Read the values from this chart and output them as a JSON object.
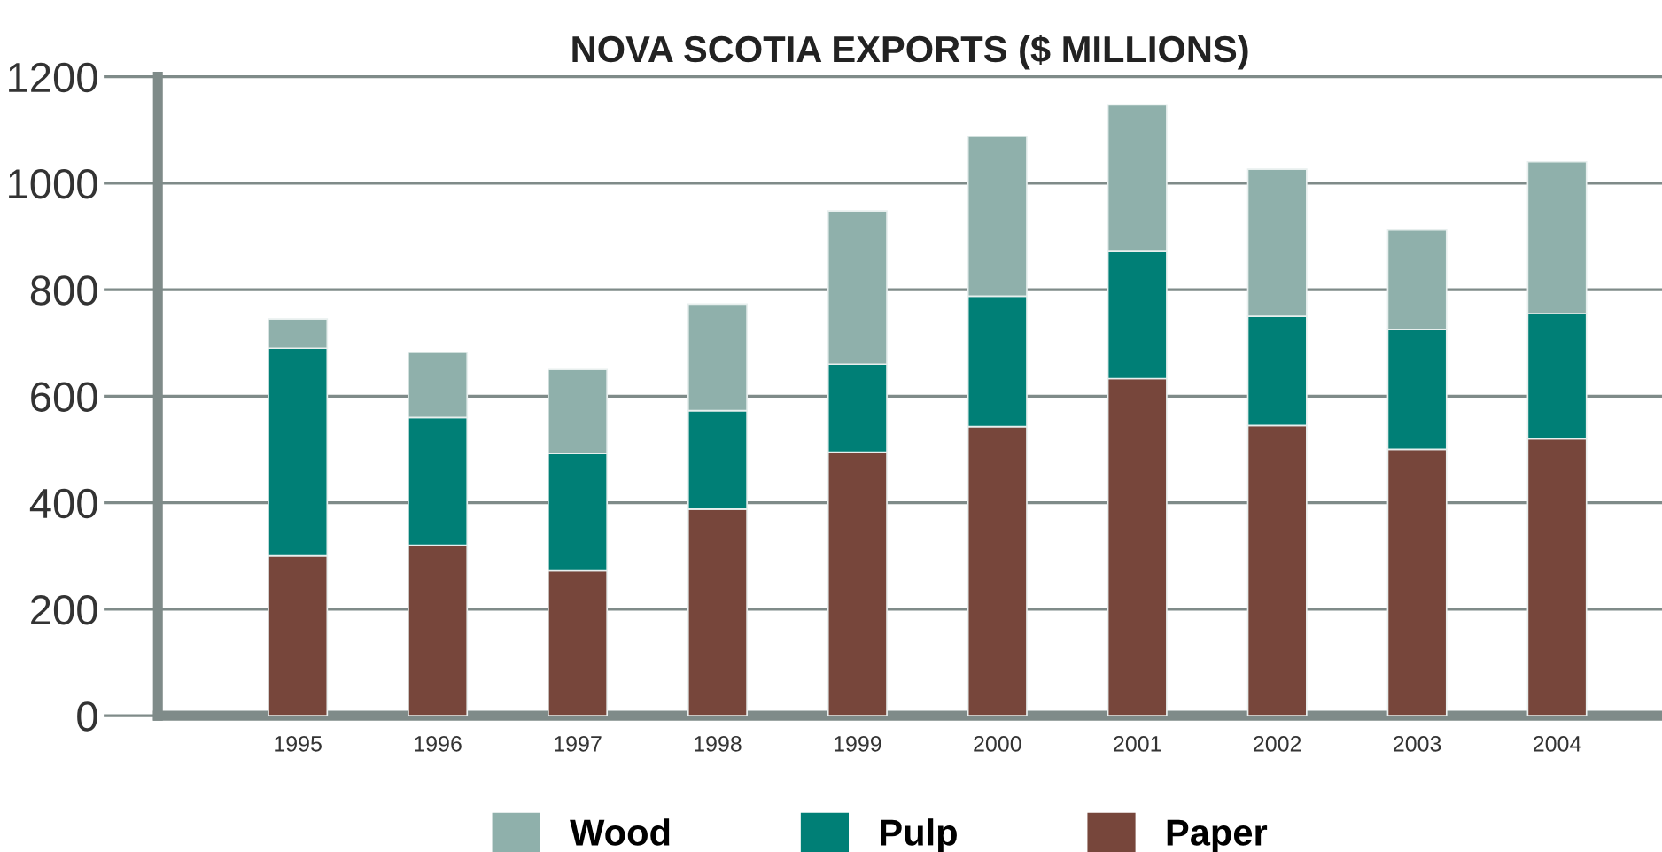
{
  "chart_data": {
    "type": "bar",
    "title": "NOVA SCOTIA EXPORTS ($ MILLIONS)",
    "stacked": true,
    "categories": [
      "1995",
      "1996",
      "1997",
      "1998",
      "1999",
      "2000",
      "2001",
      "2002",
      "2003",
      "2004"
    ],
    "series": [
      {
        "name": "Paper",
        "color": "#77463b",
        "values": [
          300,
          320,
          272,
          388,
          495,
          543,
          633,
          545,
          500,
          520
        ]
      },
      {
        "name": "Pulp",
        "color": "#007f76",
        "values": [
          390,
          240,
          220,
          185,
          165,
          245,
          240,
          205,
          225,
          235
        ]
      },
      {
        "name": "Wood",
        "color": "#8fb0ab",
        "values": [
          55,
          122,
          158,
          200,
          288,
          300,
          274,
          276,
          187,
          285
        ]
      }
    ],
    "ylim": [
      0,
      1200
    ],
    "yticks": [
      0,
      200,
      400,
      600,
      800,
      1000,
      1200
    ],
    "grid": "y",
    "legend": "bottom"
  }
}
